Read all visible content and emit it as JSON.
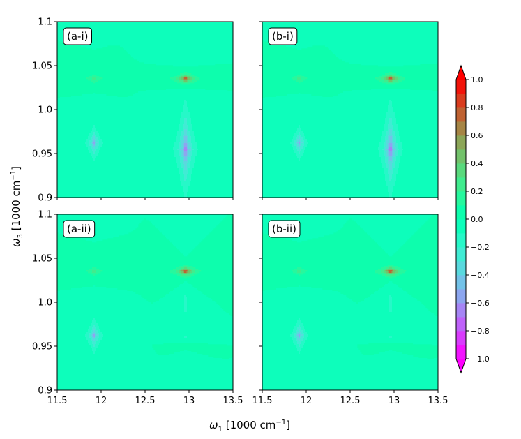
{
  "chart_data": {
    "type": "heatmap",
    "description_free": true,
    "xlabel_prefix": "ω",
    "xlabel_sub": "1",
    "xlabel_units": "[1000 cm",
    "xlabel_sup": "−1",
    "xlabel_close": "]",
    "ylabel_prefix": "ω",
    "ylabel_sub": "3",
    "ylabel_units": "[1000 cm",
    "ylabel_sup": "−1",
    "ylabel_close": "]",
    "xlim": [
      11.5,
      13.5
    ],
    "ylim": [
      0.9,
      1.1
    ],
    "x_ticks": [
      11.5,
      12,
      12.5,
      13,
      13.5
    ],
    "x_tick_labels": [
      "11.5",
      "12",
      "12.5",
      "13",
      "13.5"
    ],
    "y_ticks": [
      0.9,
      0.95,
      1.0,
      1.05,
      1.1
    ],
    "y_tick_labels": [
      "0.9",
      "0.95",
      "1.0",
      "1.05",
      "1.1"
    ],
    "colorbar": {
      "min": -1.0,
      "max": 1.0,
      "levels": 20,
      "ticks": [
        -1.0,
        -0.8,
        -0.6,
        -0.4,
        -0.2,
        0.0,
        0.2,
        0.4,
        0.6,
        0.8,
        1.0
      ],
      "tick_labels": [
        "−1.0",
        "−0.8",
        "−0.6",
        "−0.4",
        "−0.2",
        "0.0",
        "0.2",
        "0.4",
        "0.6",
        "0.8",
        "1.0"
      ],
      "colormap": "rainbow",
      "extend": "both"
    },
    "panels": [
      {
        "label": "(a-i)",
        "peaks": [
          {
            "x": 11.92,
            "y": 1.035,
            "amp": 0.33,
            "sx": 0.08,
            "sy": 0.004
          },
          {
            "x": 12.96,
            "y": 1.035,
            "amp": 1.0,
            "sx": 0.08,
            "sy": 0.004
          },
          {
            "x": 11.92,
            "y": 0.962,
            "amp": -0.55,
            "sx": 0.06,
            "sy": 0.012
          },
          {
            "x": 12.96,
            "y": 0.955,
            "amp": -0.72,
            "sx": 0.07,
            "sy": 0.03
          }
        ]
      },
      {
        "label": "(b-i)",
        "peaks": [
          {
            "x": 11.92,
            "y": 1.035,
            "amp": 0.33,
            "sx": 0.08,
            "sy": 0.004
          },
          {
            "x": 12.96,
            "y": 1.035,
            "amp": 1.0,
            "sx": 0.08,
            "sy": 0.004
          },
          {
            "x": 11.92,
            "y": 0.962,
            "amp": -0.55,
            "sx": 0.06,
            "sy": 0.012
          },
          {
            "x": 12.96,
            "y": 0.955,
            "amp": -0.72,
            "sx": 0.07,
            "sy": 0.03
          }
        ]
      },
      {
        "label": "(a-ii)",
        "peaks": [
          {
            "x": 11.92,
            "y": 1.035,
            "amp": 0.33,
            "sx": 0.08,
            "sy": 0.004
          },
          {
            "x": 12.96,
            "y": 1.035,
            "amp": 1.0,
            "sx": 0.08,
            "sy": 0.004
          },
          {
            "x": 11.92,
            "y": 0.962,
            "amp": -0.55,
            "sx": 0.06,
            "sy": 0.012
          },
          {
            "x": 12.96,
            "y": 0.998,
            "amp": -0.2,
            "sx": 0.03,
            "sy": 0.022
          },
          {
            "x": 12.96,
            "y": 0.96,
            "amp": -0.15,
            "sx": 0.05,
            "sy": 0.003
          },
          {
            "x": 12.96,
            "y": 0.951,
            "amp": 0.12,
            "sx": 0.04,
            "sy": 0.003
          }
        ]
      },
      {
        "label": "(b-ii)",
        "peaks": [
          {
            "x": 11.92,
            "y": 1.035,
            "amp": 0.33,
            "sx": 0.08,
            "sy": 0.004
          },
          {
            "x": 12.96,
            "y": 1.035,
            "amp": 1.0,
            "sx": 0.08,
            "sy": 0.004
          },
          {
            "x": 11.92,
            "y": 0.962,
            "amp": -0.55,
            "sx": 0.06,
            "sy": 0.012
          },
          {
            "x": 12.96,
            "y": 0.998,
            "amp": -0.2,
            "sx": 0.03,
            "sy": 0.022
          },
          {
            "x": 12.96,
            "y": 0.96,
            "amp": -0.15,
            "sx": 0.05,
            "sy": 0.003
          },
          {
            "x": 12.96,
            "y": 0.951,
            "amp": 0.12,
            "sx": 0.04,
            "sy": 0.003
          }
        ]
      }
    ]
  }
}
